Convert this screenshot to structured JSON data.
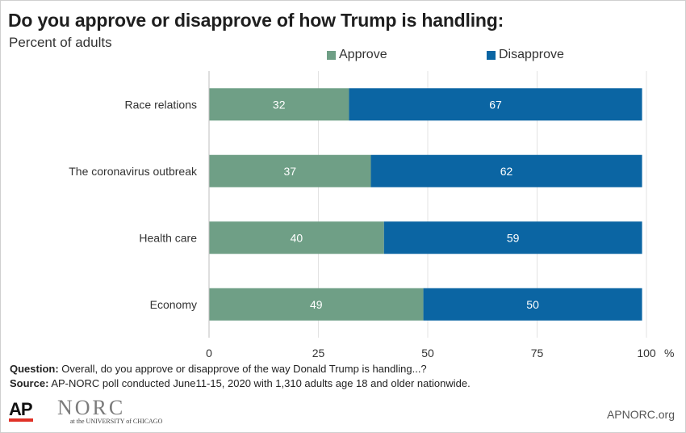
{
  "header": {
    "title": "Do you approve or disapprove of how Trump is handling:",
    "subtitle": "Percent of adults"
  },
  "chart_data": {
    "type": "bar",
    "orientation": "horizontal",
    "stacked": true,
    "categories": [
      "Race relations",
      "The coronavirus outbreak",
      "Health care",
      "Economy"
    ],
    "series": [
      {
        "name": "Approve",
        "values": [
          32,
          37,
          40,
          49
        ],
        "color": "#6f9f86"
      },
      {
        "name": "Disapprove",
        "values": [
          67,
          62,
          59,
          50
        ],
        "color": "#0b65a3"
      }
    ],
    "xlim": [
      0,
      100
    ],
    "xticks": [
      0,
      25,
      50,
      75,
      100
    ],
    "xunit": "%",
    "grid": "vertical",
    "legend_position": "top"
  },
  "notes": {
    "question_label": "Question:",
    "question_text": "Overall, do you approve or disapprove of the way Donald Trump is handling...?",
    "source_label": "Source:",
    "source_text": "AP-NORC poll conducted June11-15, 2020 with 1,310 adults age 18 and older nationwide."
  },
  "footer": {
    "ap_logo": "AP",
    "norc_logo": "NORC",
    "norc_subtitle": "at the UNIVERSITY of CHICAGO",
    "site": "APNORC.org"
  }
}
